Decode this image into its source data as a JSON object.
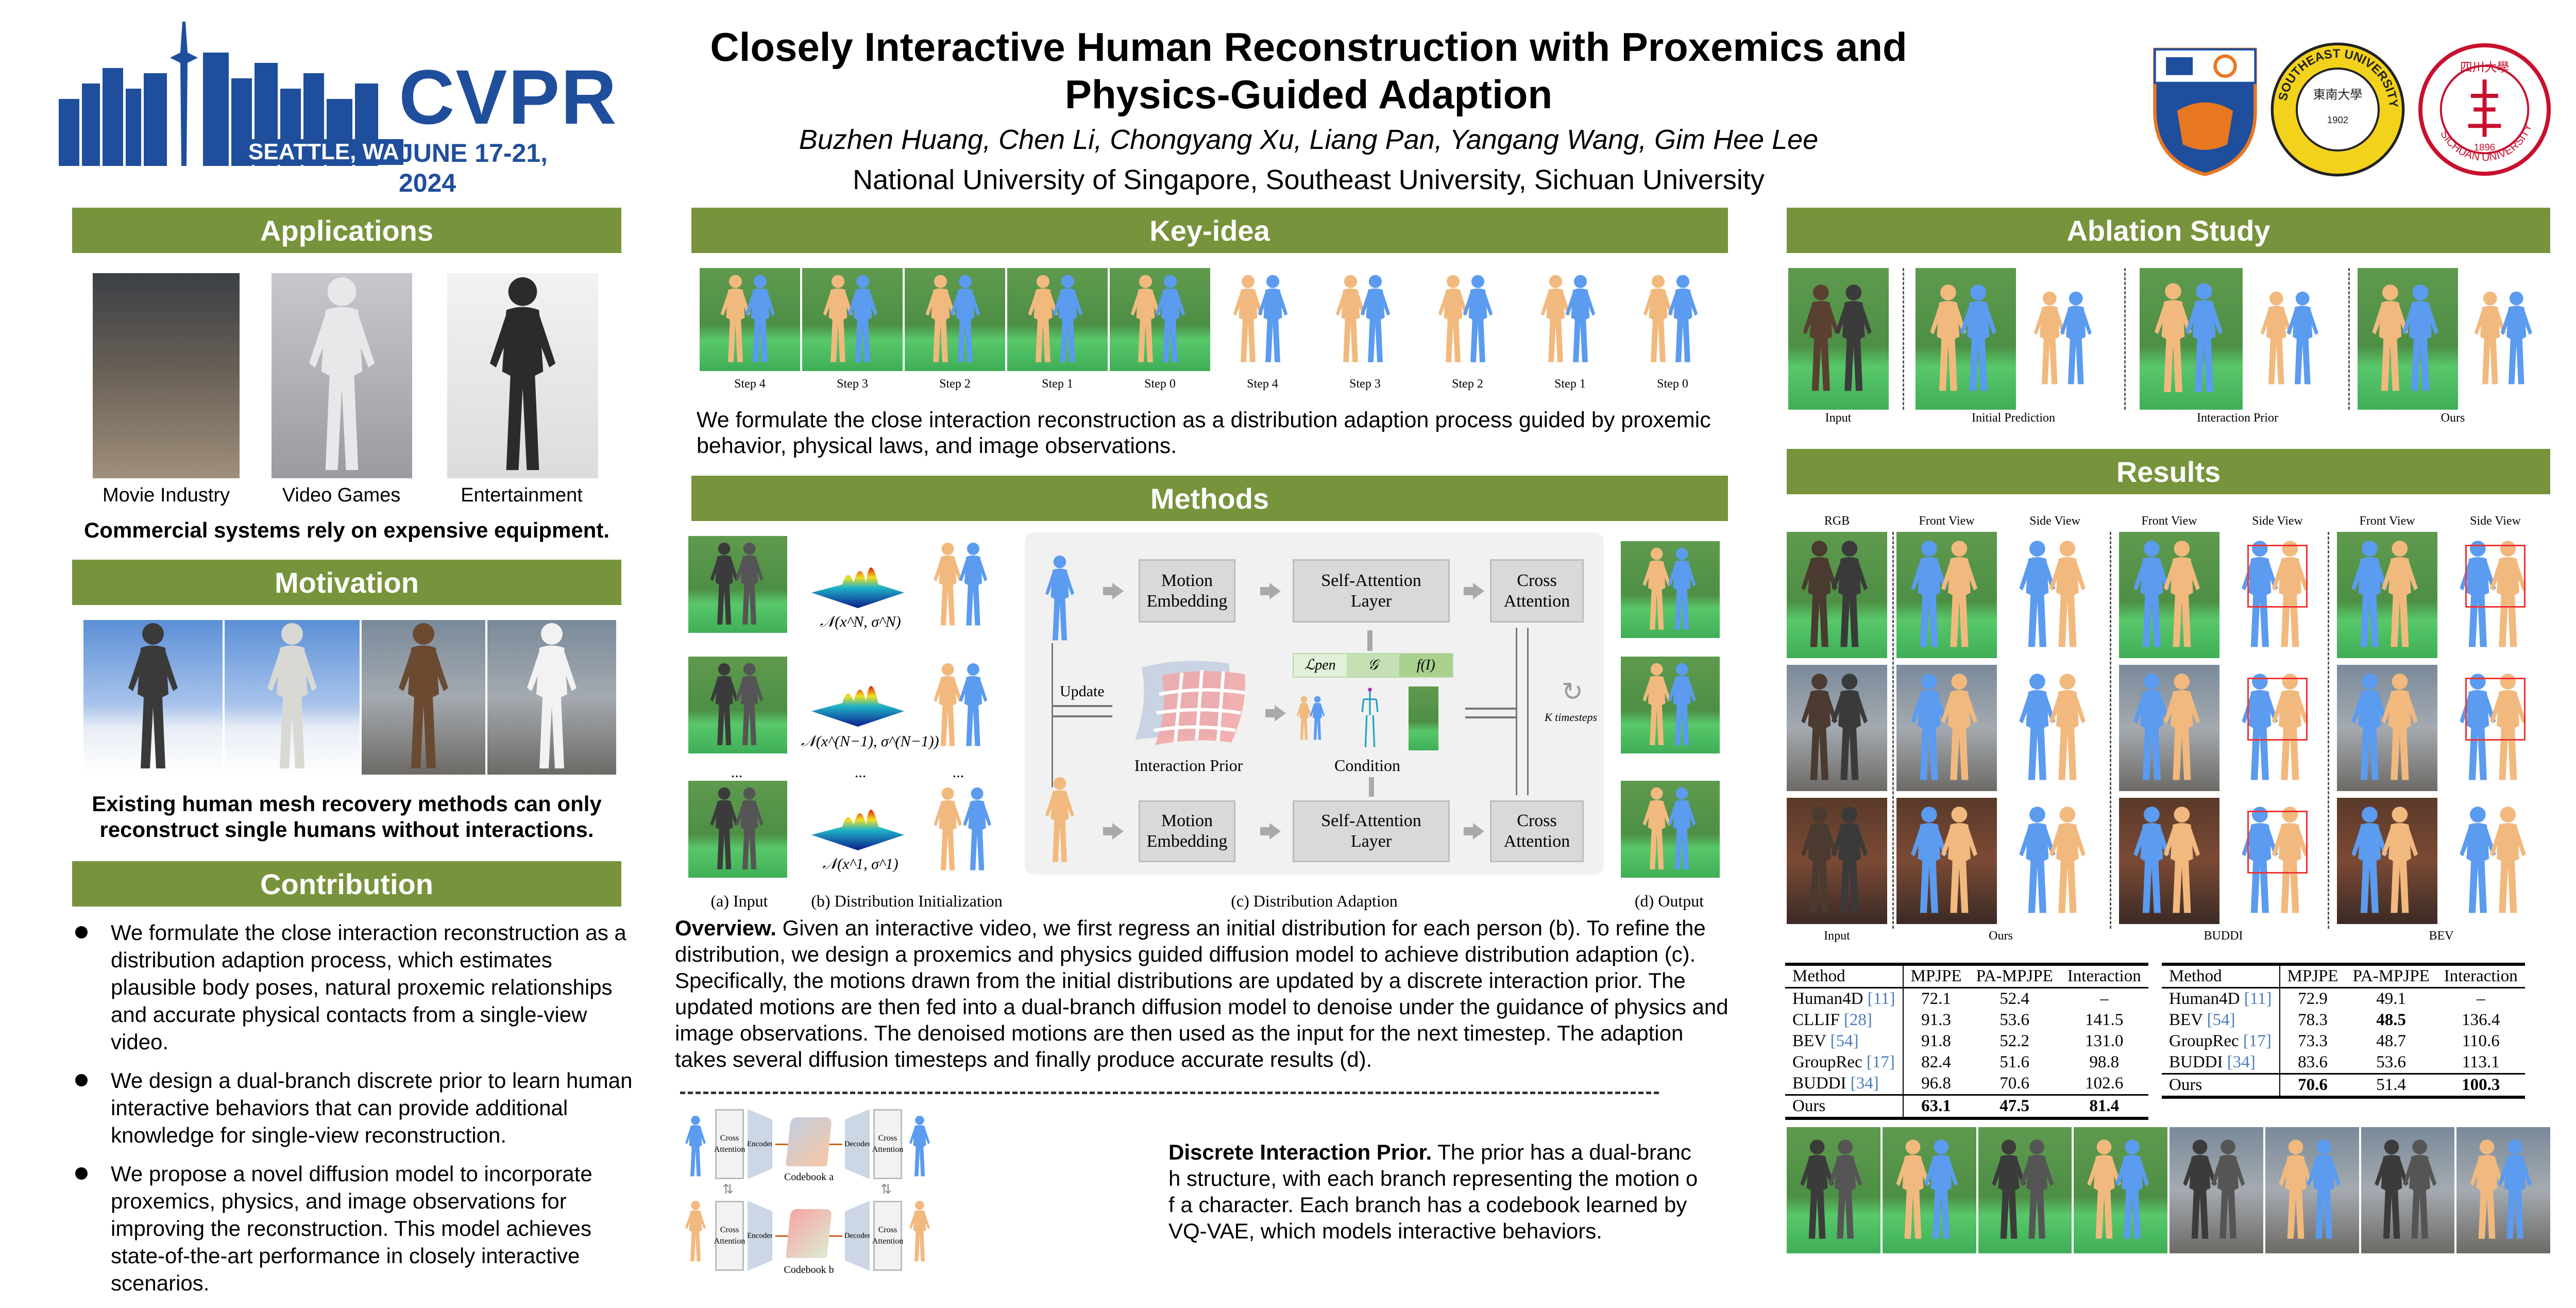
{
  "header": {
    "conference": {
      "name": "CVPR",
      "location": "SEATTLE, WA",
      "dates": "JUNE 17-21, 2024"
    },
    "title_line1": "Closely Interactive Human Reconstruction with Proxemics and",
    "title_line2": "Physics-Guided Adaption",
    "authors": "Buzhen Huang, Chen Li, Chongyang Xu, Liang Pan, Yangang Wang, Gim Hee Lee",
    "affiliations": "National University of Singapore, Southeast University, Sichuan University",
    "logos": {
      "seu": {
        "name": "SOUTHEAST UNIVERSITY",
        "chinese": "東南大學",
        "year": "1902"
      },
      "scu": {
        "name": "SICHUAN UNIVERSITY",
        "chinese": "四川大學",
        "year": "1896"
      }
    }
  },
  "applications": {
    "title": "Applications",
    "items": [
      {
        "label": "Movie Industry"
      },
      {
        "label": "Video Games"
      },
      {
        "label": "Entertainment"
      }
    ],
    "note": "Commercial systems rely on expensive equipment."
  },
  "motivation": {
    "title": "Motivation",
    "note_line1": "Existing human mesh recovery methods can only",
    "note_line2": "reconstruct single humans without interactions."
  },
  "contribution": {
    "title": "Contribution",
    "bullets": [
      "We formulate the close interaction reconstruction as a distribution adaption process, which estimates plausible body poses, natural proxemic relationships and accurate physical contacts from a single-view video.",
      "We design a dual-branch discrete prior to learn human interactive behaviors that can provide additional knowledge for single-view reconstruction.",
      "We propose a novel diffusion model to incorporate proxemics, physics, and image observations for improving the reconstruction. This model achieves state-of-the-art performance in closely interactive scenarios."
    ]
  },
  "key_idea": {
    "title": "Key-idea",
    "steps": [
      "Step 4",
      "Step 3",
      "Step 2",
      "Step 1",
      "Step 0",
      "Step 4",
      "Step 3",
      "Step 2",
      "Step 1",
      "Step 0"
    ],
    "text": "We formulate the close interaction reconstruction as a distribution adaption process guided by proxemic behavior, physical laws, and image observations."
  },
  "methods": {
    "title": "Methods",
    "figure": {
      "captions": {
        "input": "(a) Input",
        "init": "(b) Distribution Initialization",
        "adapt": "(c) Distribution Adaption",
        "output": "(d) Output"
      },
      "distributions": [
        "𝒩(x^N, σ^N)",
        "𝒩(x^(N−1), σ^(N−1))",
        "𝒩(x^1, σ^1)"
      ],
      "ellipsis": "...",
      "motion_embedding": "Motion Embedding",
      "self_attention": "Self-Attention Layer",
      "cross_attention": "Cross Attention",
      "update": "Update",
      "interaction_prior": "Interaction Prior",
      "condition": "Condition",
      "condition_terms": [
        "ℒpen",
        "𝒢",
        "f(I)"
      ],
      "k_timesteps": "K timesteps"
    },
    "overview_label": "Overview.",
    "overview_text": "Given an interactive video, we first regress an initial distribution for each person (b). To refine the distribution, we design a proxemics and physics guided  diffusion model to achieve distribution adaption (c). Specifically, the motions drawn from the initial distributions are updated by a discrete interaction prior. The updated motions are then fed into a dual-branch diffusion model to denoise under the guidance of physics and image observations. The denoised motions are then used as the input for the next timestep. The adaption takes several diffusion timesteps and finally produce accurate results (d).",
    "prior_figure": {
      "cross_attention": "Cross Attention",
      "encoder": "Encoder",
      "decoder": "Decoder",
      "codebook_a": "Codebook a",
      "codebook_b": "Codebook b"
    },
    "prior_label": "Discrete Interaction Prior.",
    "prior_lines": [
      " The prior has a dual-branc",
      "h structure, with each branch representing the motion o",
      "f a character. Each branch has a codebook learned by",
      "VQ-VAE, which models interactive behaviors."
    ]
  },
  "ablation": {
    "title": "Ablation Study",
    "labels": [
      "Input",
      "Initial Prediction",
      "Interaction Prior",
      "Ours"
    ]
  },
  "results": {
    "title": "Results",
    "column_labels": [
      "RGB",
      "Front View",
      "Side View",
      "Front View",
      "Side View",
      "Front View",
      "Side View"
    ],
    "group_labels": [
      "Input",
      "Ours",
      "BUDDI",
      "BEV"
    ],
    "tables": [
      {
        "headers": [
          "Method",
          "MPJPE",
          "PA-MPJPE",
          "Interaction"
        ],
        "rows": [
          {
            "method": "Human4D",
            "cite": "[11]",
            "values": [
              "72.1",
              "52.4",
              "–"
            ]
          },
          {
            "method": "CLLIF",
            "cite": "[28]",
            "values": [
              "91.3",
              "53.6",
              "141.5"
            ]
          },
          {
            "method": "BEV",
            "cite": "[54]",
            "values": [
              "91.8",
              "52.2",
              "131.0"
            ]
          },
          {
            "method": "GroupRec",
            "cite": "[17]",
            "values": [
              "82.4",
              "51.6",
              "98.8"
            ]
          },
          {
            "method": "BUDDI",
            "cite": "[34]",
            "values": [
              "96.8",
              "70.6",
              "102.6"
            ]
          }
        ],
        "ours": {
          "method": "Ours",
          "values": [
            "63.1",
            "47.5",
            "81.4"
          ],
          "bold": [
            true,
            true,
            true
          ]
        }
      },
      {
        "headers": [
          "Method",
          "MPJPE",
          "PA-MPJPE",
          "Interaction"
        ],
        "rows": [
          {
            "method": "Human4D",
            "cite": "[11]",
            "values": [
              "72.9",
              "49.1",
              "–"
            ]
          },
          {
            "method": "BEV",
            "cite": "[54]",
            "values": [
              "78.3",
              "48.5",
              "136.4"
            ],
            "bold": [
              false,
              true,
              false
            ]
          },
          {
            "method": "GroupRec",
            "cite": "[17]",
            "values": [
              "73.3",
              "48.7",
              "110.6"
            ]
          },
          {
            "method": "BUDDI",
            "cite": "[34]",
            "values": [
              "83.6",
              "53.6",
              "113.1"
            ]
          }
        ],
        "ours": {
          "method": "Ours",
          "values": [
            "70.6",
            "51.4",
            "100.3"
          ],
          "bold": [
            true,
            false,
            true
          ]
        }
      }
    ]
  },
  "colors": {
    "section_header": "#77933c",
    "citation": "#4a7ebb",
    "blue_body": "#5b9bf0",
    "orange_body": "#f2b97e",
    "cvpr_blue": "#1f4e9c"
  }
}
